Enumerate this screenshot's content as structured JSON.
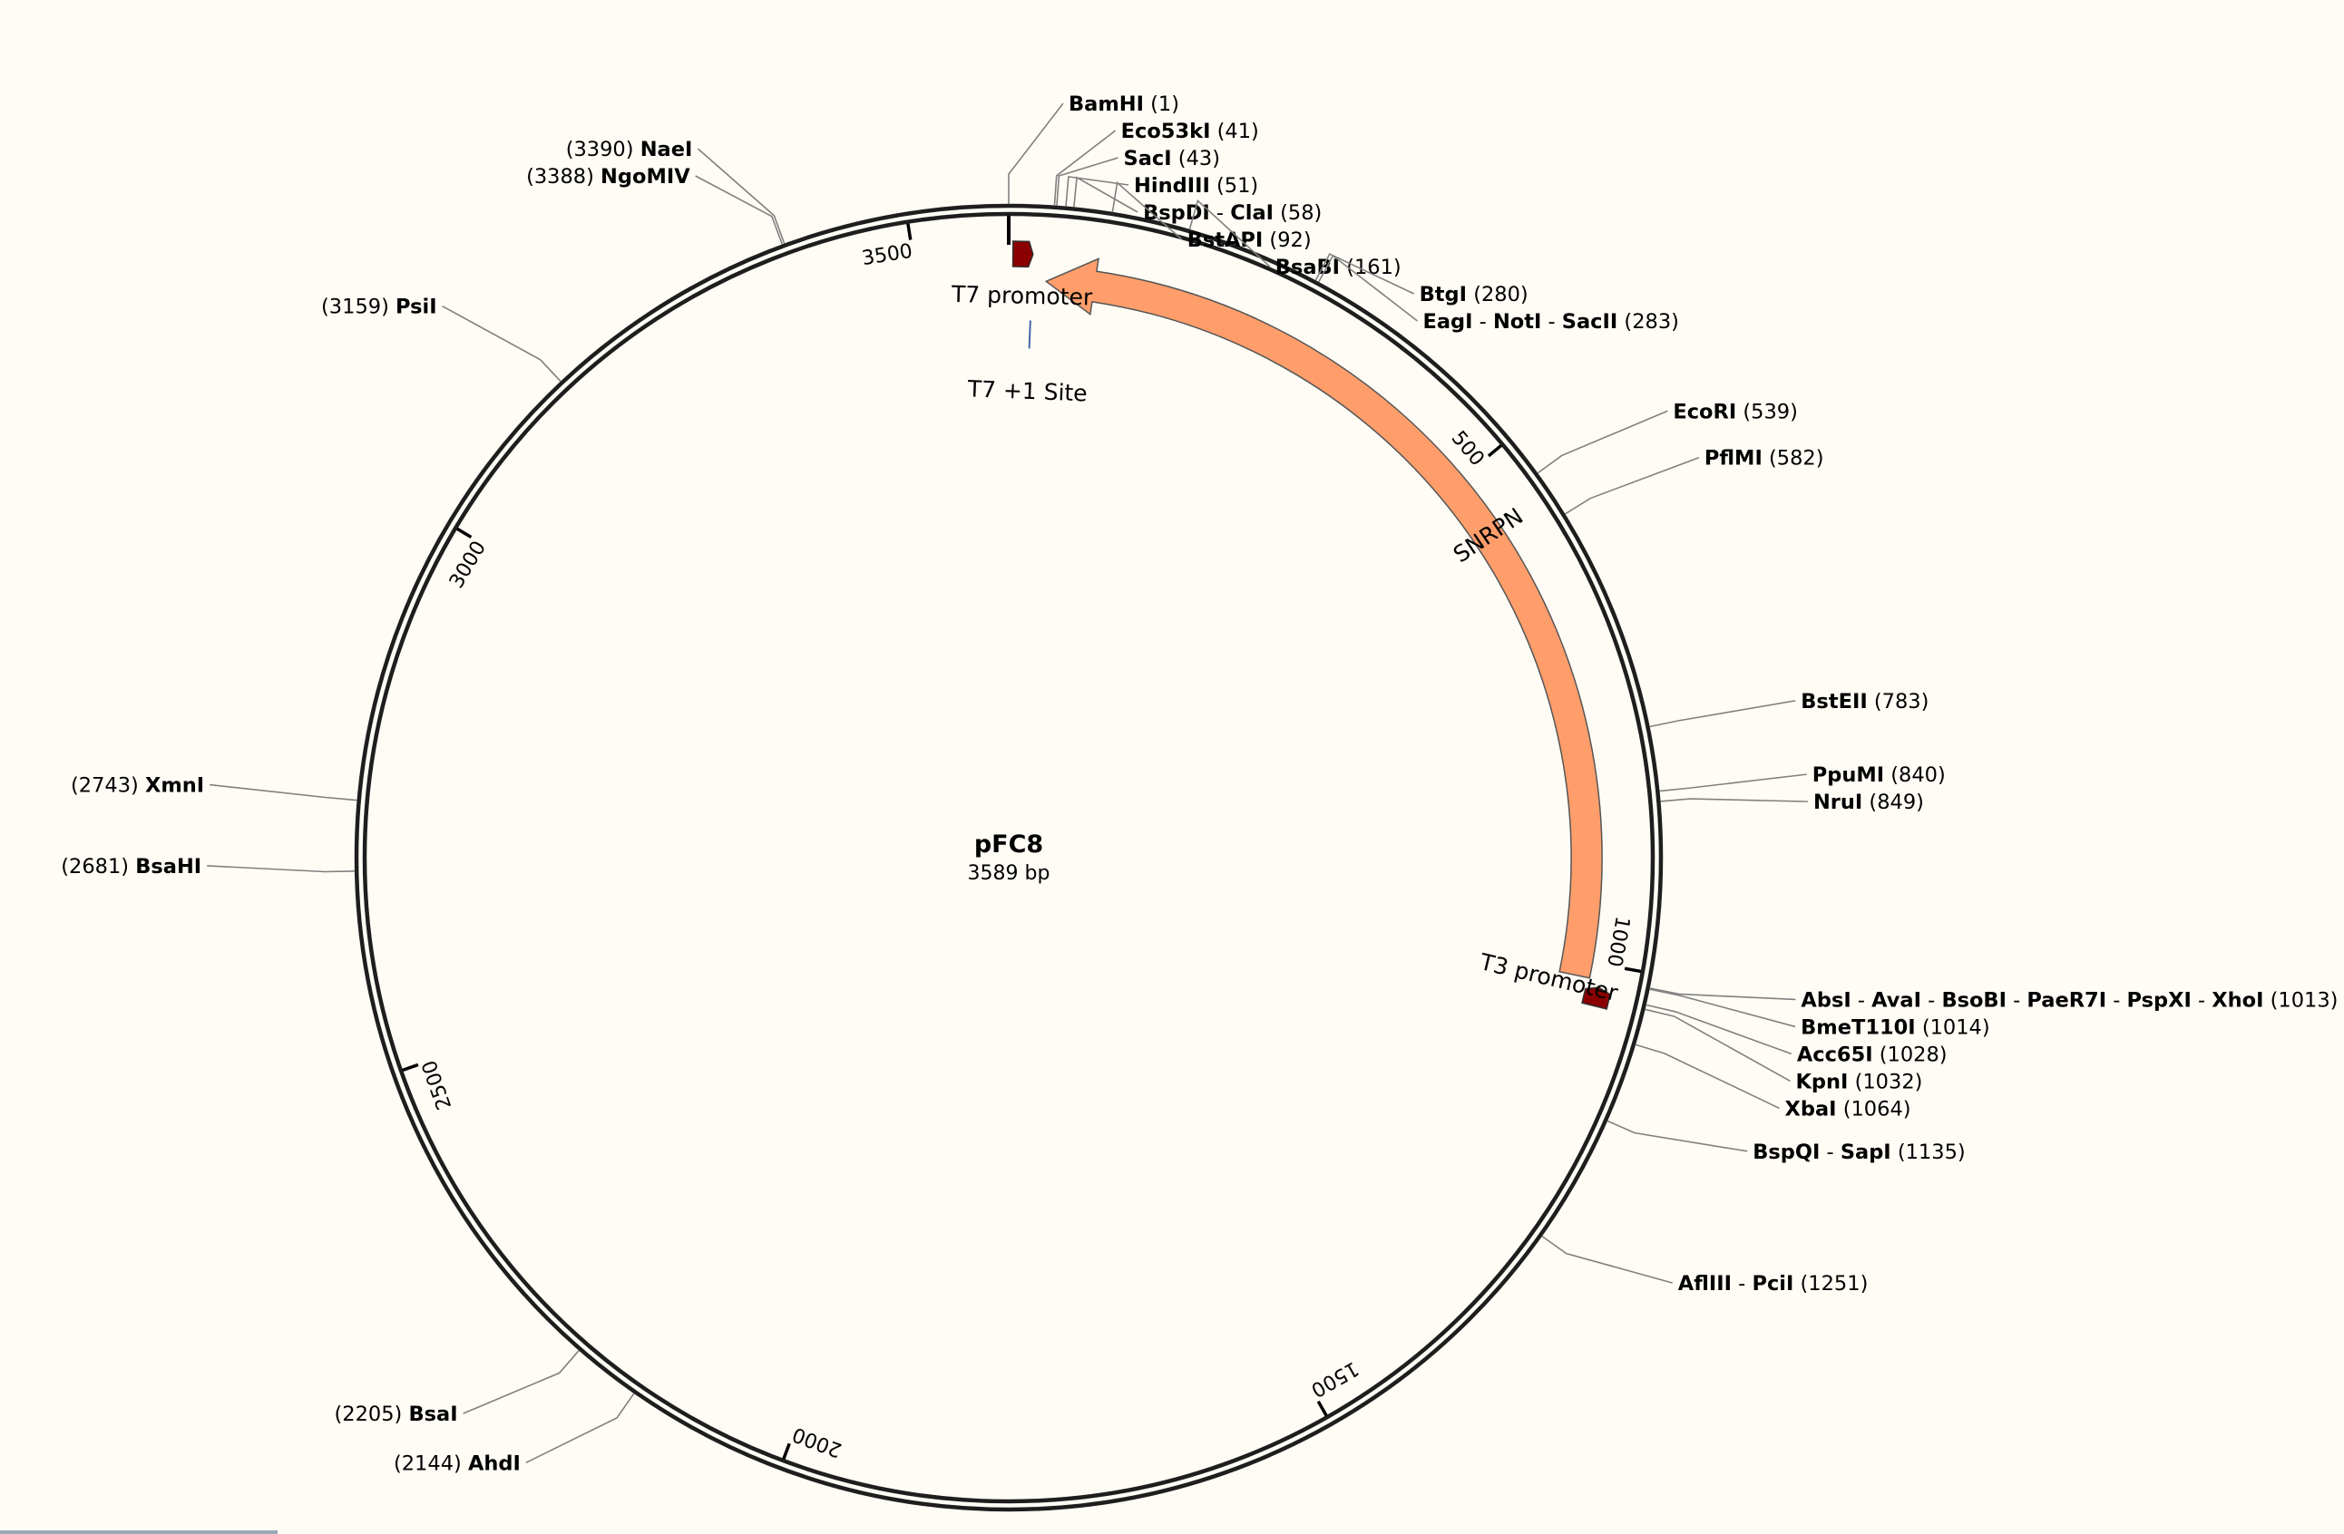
{
  "plasmid": {
    "name": "pFC8",
    "length": 3589,
    "length_label": "3589 bp"
  },
  "colors": {
    "background": "#fffcf5",
    "backbone": "#1e1e1e",
    "snrpn": "#ff9e6b",
    "promoter": "#8b0000",
    "site_line": "#4466aa",
    "leader": "#808080"
  },
  "ticks": [
    {
      "bp": 500,
      "label": "500"
    },
    {
      "bp": 1000,
      "label": "1000"
    },
    {
      "bp": 1500,
      "label": "1500"
    },
    {
      "bp": 2000,
      "label": "2000"
    },
    {
      "bp": 2500,
      "label": "2500"
    },
    {
      "bp": 3000,
      "label": "3000"
    },
    {
      "bp": 3500,
      "label": "3500"
    }
  ],
  "features": [
    {
      "name": "SNRPN",
      "start": 38,
      "end": 1015,
      "direction": "reverse",
      "type": "cds"
    },
    {
      "name": "T7 promoter",
      "start": 5,
      "end": 24,
      "direction": "forward",
      "type": "promoter"
    },
    {
      "name": "T3 promoter",
      "start": 1022,
      "end": 1040,
      "direction": "reverse",
      "type": "promoter"
    },
    {
      "name": "T7 +1 Site",
      "bp": 24,
      "type": "site"
    }
  ],
  "sites": [
    {
      "enzymes": [
        "BamHI"
      ],
      "position": 1,
      "bp": 1
    },
    {
      "enzymes": [
        "Eco53kI"
      ],
      "position": 41,
      "bp": 41
    },
    {
      "enzymes": [
        "SacI"
      ],
      "position": 43,
      "bp": 43
    },
    {
      "enzymes": [
        "HindIII"
      ],
      "position": 51,
      "bp": 51
    },
    {
      "enzymes": [
        "BspDI",
        "ClaI"
      ],
      "position": 58,
      "bp": 58
    },
    {
      "enzymes": [
        "BstAPI"
      ],
      "position": 92,
      "bp": 92
    },
    {
      "enzymes": [
        "BsaBI"
      ],
      "position": 161,
      "bp": 161
    },
    {
      "enzymes": [
        "BtgI"
      ],
      "position": 280,
      "bp": 280
    },
    {
      "enzymes": [
        "EagI",
        "NotI",
        "SacII"
      ],
      "position": 283,
      "bp": 283
    },
    {
      "enzymes": [
        "EcoRI"
      ],
      "position": 539,
      "bp": 539
    },
    {
      "enzymes": [
        "PflMI"
      ],
      "position": 582,
      "bp": 582
    },
    {
      "enzymes": [
        "BstEII"
      ],
      "position": 783,
      "bp": 783
    },
    {
      "enzymes": [
        "PpuMI"
      ],
      "position": 840,
      "bp": 840
    },
    {
      "enzymes": [
        "NruI"
      ],
      "position": 849,
      "bp": 849
    },
    {
      "enzymes": [
        "AbsI",
        "AvaI",
        "BsoBI",
        "PaeR7I",
        "PspXI",
        "XhoI"
      ],
      "position": 1013,
      "bp": 1013
    },
    {
      "enzymes": [
        "BmeT110I"
      ],
      "position": 1014,
      "bp": 1014
    },
    {
      "enzymes": [
        "Acc65I"
      ],
      "position": 1028,
      "bp": 1028
    },
    {
      "enzymes": [
        "KpnI"
      ],
      "position": 1032,
      "bp": 1032
    },
    {
      "enzymes": [
        "XbaI"
      ],
      "position": 1064,
      "bp": 1064
    },
    {
      "enzymes": [
        "BspQI",
        "SapI"
      ],
      "position": 1135,
      "bp": 1135
    },
    {
      "enzymes": [
        "AflIII",
        "PciI"
      ],
      "position": 1251,
      "bp": 1251
    },
    {
      "enzymes": [
        "AhdI"
      ],
      "position": 2144,
      "bp": 2144
    },
    {
      "enzymes": [
        "BsaI"
      ],
      "position": 2205,
      "bp": 2205
    },
    {
      "enzymes": [
        "BsaHI"
      ],
      "position": 2681,
      "bp": 2681
    },
    {
      "enzymes": [
        "XmnI"
      ],
      "position": 2743,
      "bp": 2743
    },
    {
      "enzymes": [
        "PsiI"
      ],
      "position": 3159,
      "bp": 3159
    },
    {
      "enzymes": [
        "NgoMIV"
      ],
      "position": 3388,
      "bp": 3388
    },
    {
      "enzymes": [
        "NaeI"
      ],
      "position": 3390,
      "bp": 3390
    }
  ]
}
